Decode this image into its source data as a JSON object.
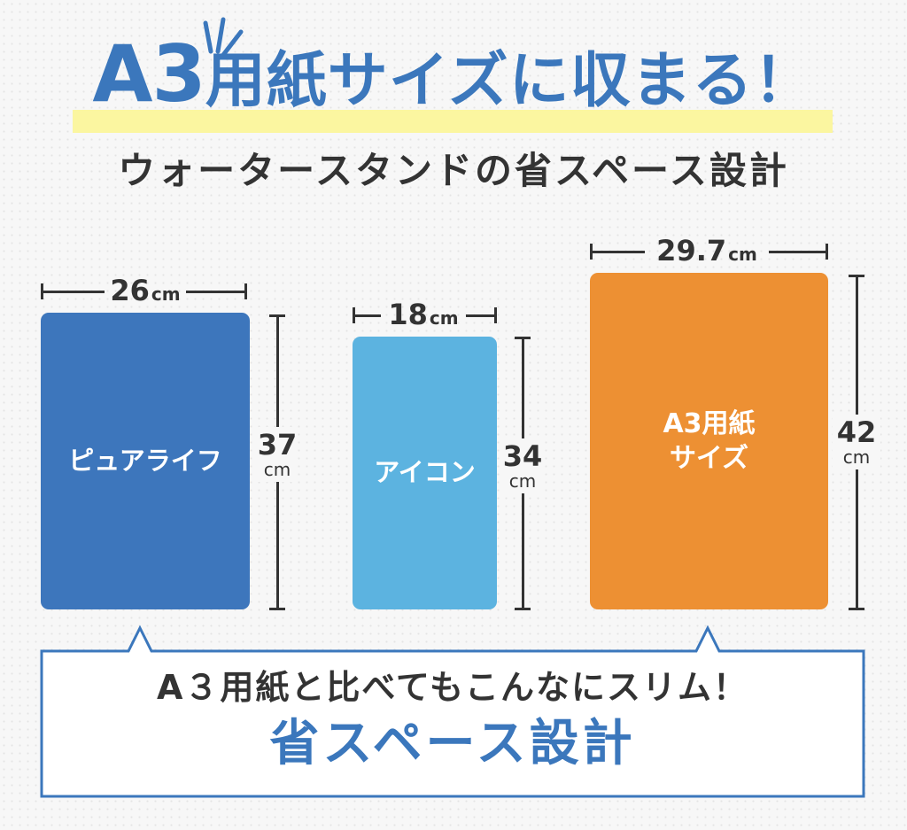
{
  "title": {
    "prefix": "A3",
    "main": "用紙サイズに収まる！",
    "accent_color": "#3b77bc",
    "highlight_color": "#fbf6a0"
  },
  "subtitle": "ウォータースタンドの省スペース設計",
  "boxes": [
    {
      "label": "ピュアライフ",
      "width_value": "26",
      "height_value": "37",
      "unit": "cm",
      "color": "#3d76bc"
    },
    {
      "label": "アイコン",
      "width_value": "18",
      "height_value": "34",
      "unit": "cm",
      "color": "#5cb3e0"
    },
    {
      "label_line1": "A3用紙",
      "label_line2": "サイズ",
      "width_value": "29.7",
      "height_value": "42",
      "unit": "cm",
      "color": "#ed9033"
    }
  ],
  "callout": {
    "line1": "A３用紙と比べてもこんなにスリム！",
    "line2": "省スペース設計",
    "border_color": "#3b77bc"
  }
}
